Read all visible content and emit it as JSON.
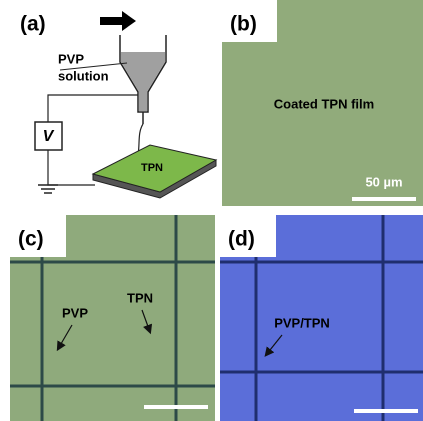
{
  "panels": [
    {
      "label": "(a)",
      "texts": {
        "solution_top": "PVP",
        "solution_bottom": "solution",
        "voltage": "V",
        "substrate": "TPN"
      }
    },
    {
      "label": "(b)",
      "texts": {
        "film": "Coated TPN film",
        "scale": "50 µm"
      }
    },
    {
      "label": "(c)",
      "texts": {
        "pvp": "PVP",
        "tpn": "TPN"
      }
    },
    {
      "label": "(d)",
      "texts": {
        "pvp_tpn": "PVP/TPN"
      }
    }
  ]
}
